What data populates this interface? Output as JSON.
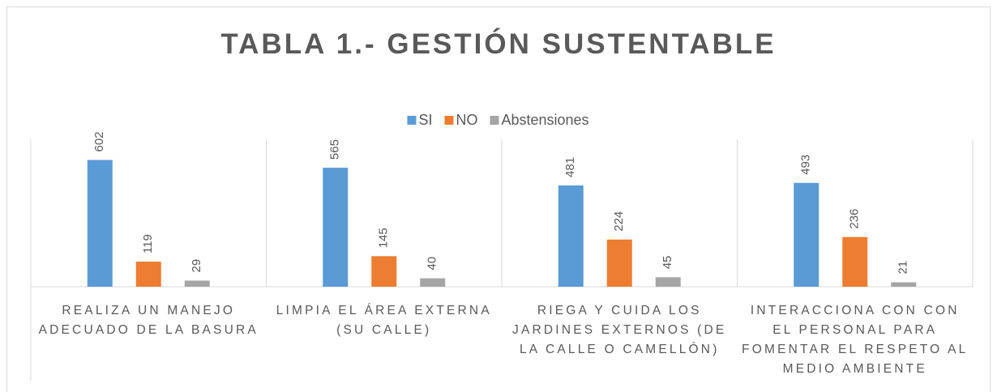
{
  "chart_data": {
    "type": "bar",
    "title": "TABLA 1.- GESTIÓN SUSTENTABLE",
    "categories": [
      "REALIZA UN MANEJO ADECUADO DE LA BASURA",
      "LIMPIA EL ÁREA EXTERNA (SU CALLE)",
      "RIEGA Y CUIDA LOS JARDINES EXTERNOS (DE LA CALLE O CAMELLÓN)",
      "INTERACCIONA CON CON EL PERSONAL PARA FOMENTAR EL RESPETO AL MEDIO AMBIENTE"
    ],
    "series": [
      {
        "name": "SI",
        "color": "#5b9bd5",
        "values": [
          602,
          565,
          481,
          493
        ]
      },
      {
        "name": "NO",
        "color": "#ed7d31",
        "values": [
          119,
          145,
          224,
          236
        ]
      },
      {
        "name": "Abstensiones",
        "color": "#a5a5a5",
        "values": [
          29,
          40,
          45,
          21
        ]
      }
    ],
    "ylim": [
      0,
      700
    ],
    "legend": "top"
  }
}
